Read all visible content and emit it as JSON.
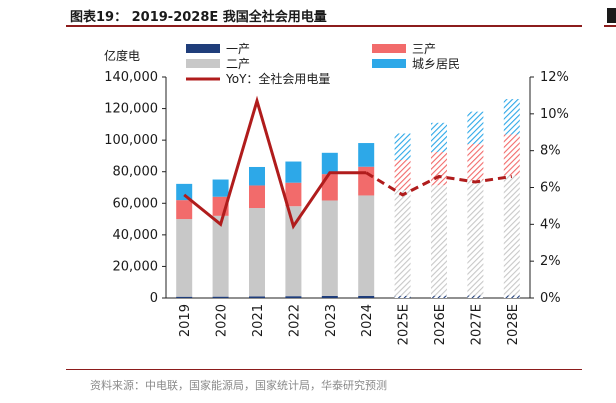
{
  "header": {
    "title": "图表19：  2019-2028E 我国全社会用电量"
  },
  "footer": {
    "source": "资料来源：中电联，国家能源局，国家统计局，华泰研究预测"
  },
  "chart_data": {
    "type": "bar",
    "stacked": true,
    "title": "2019-2028E 我国全社会用电量",
    "ylabel": "亿度电",
    "categories": [
      "2019",
      "2020",
      "2021",
      "2022",
      "2023",
      "2024",
      "2025E",
      "2026E",
      "2027E",
      "2028E"
    ],
    "forecast_from_index": 6,
    "ylim": [
      0,
      140000
    ],
    "yticks": [
      "0",
      "20,000",
      "40,000",
      "60,000",
      "80,000",
      "100,000",
      "120,000",
      "140,000"
    ],
    "ylim_right": [
      0,
      12
    ],
    "yticks_right": [
      "0%",
      "2%",
      "4%",
      "6%",
      "8%",
      "10%",
      "12%"
    ],
    "series": [
      {
        "name": "一产",
        "color": "#1f3d7a",
        "values": [
          800,
          850,
          1000,
          1150,
          1280,
          1360,
          1420,
          1480,
          1550,
          1610
        ]
      },
      {
        "name": "二产",
        "color": "#c8c8c8",
        "values": [
          49200,
          51200,
          56000,
          57000,
          60500,
          63600,
          67000,
          70000,
          73000,
          76000
        ]
      },
      {
        "name": "三产",
        "color": "#f26b6b",
        "values": [
          12000,
          12100,
          14300,
          14900,
          16700,
          18200,
          19000,
          21000,
          23000,
          26000
        ]
      },
      {
        "name": "城乡居民",
        "color": "#2da8e8",
        "values": [
          10300,
          10900,
          11700,
          13400,
          13500,
          15000,
          16800,
          18500,
          20500,
          22400
        ]
      }
    ],
    "line": {
      "name": "YoY：全社会用电量",
      "color": "#b01c1c",
      "values": [
        5.6,
        4.0,
        10.7,
        3.9,
        6.8,
        6.8,
        5.6,
        6.6,
        6.3,
        6.6
      ]
    }
  }
}
